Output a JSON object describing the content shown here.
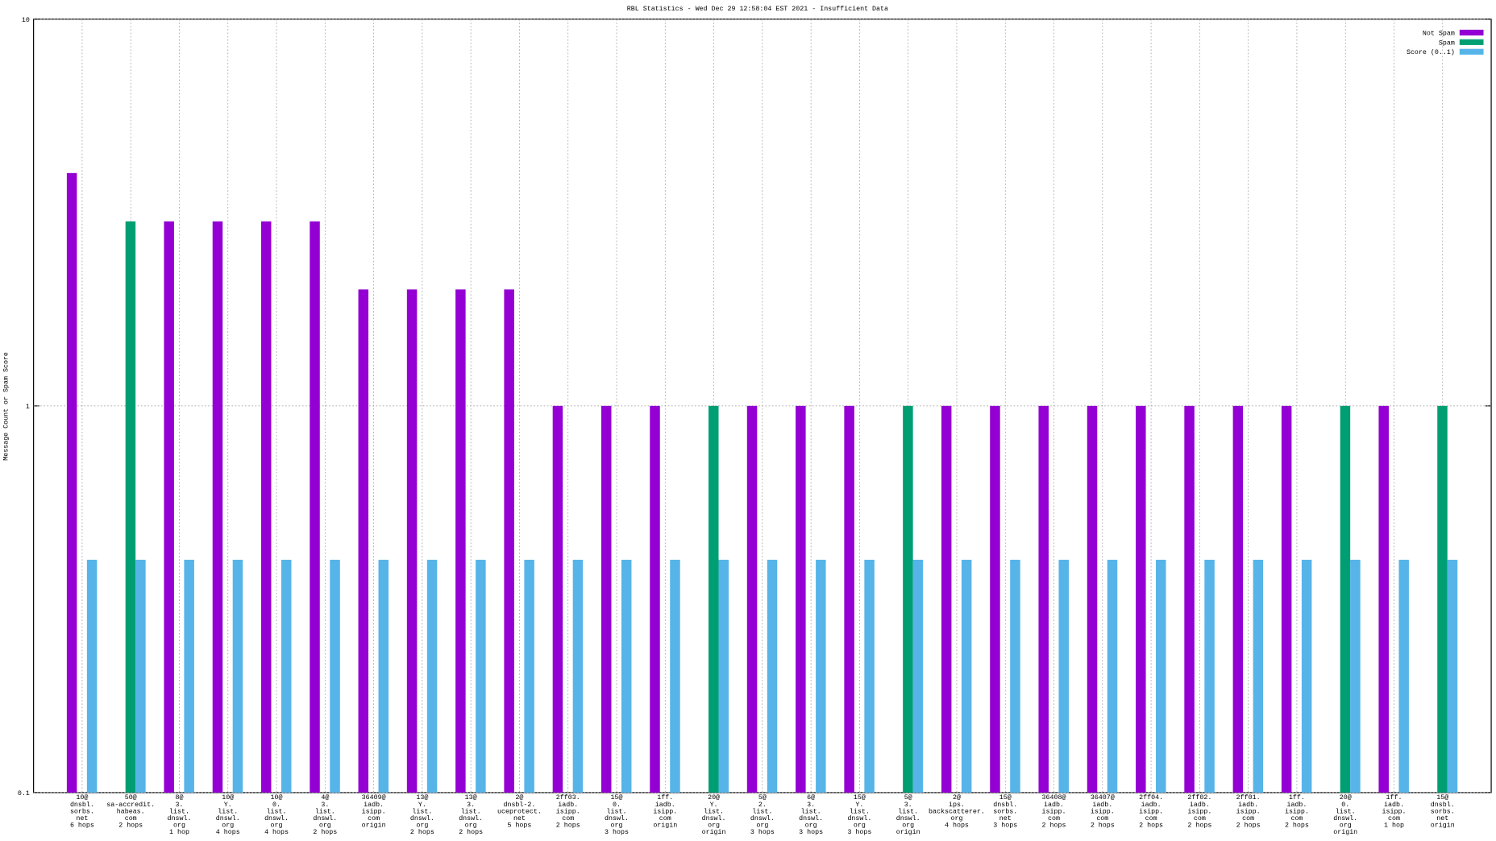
{
  "chart_data": {
    "type": "bar",
    "title": "RBL Statistics - Wed Dec 29 12:58:04 EST 2021 - Insufficient Data",
    "y_label": "Message Count or Spam Score",
    "log_y": true,
    "grid": true,
    "legend": "top-right",
    "categories": [
      [
        "10@",
        "dnsbl.",
        "sorbs.",
        "net",
        "6 hops"
      ],
      [
        "50@",
        "sa-accredit.",
        "habeas.",
        "com",
        "2 hops"
      ],
      [
        "8@",
        "3.",
        "list.",
        "dnswl.",
        "org",
        "1 hop"
      ],
      [
        "10@",
        "Y.",
        "list.",
        "dnswl.",
        "org",
        "4 hops"
      ],
      [
        "10@",
        "0.",
        "list.",
        "dnswl.",
        "org",
        "4 hops"
      ],
      [
        "4@",
        "3.",
        "list.",
        "dnswl.",
        "org",
        "2 hops"
      ],
      [
        "36409@",
        "iadb.",
        "isipp.",
        "com",
        "origin"
      ],
      [
        "13@",
        "Y.",
        "list.",
        "dnswl.",
        "org",
        "2 hops"
      ],
      [
        "13@",
        "3.",
        "list.",
        "dnswl.",
        "org",
        "2 hops"
      ],
      [
        "2@",
        "dnsbl-2.",
        "uceprotect.",
        "net",
        "5 hops"
      ],
      [
        "2ff03.",
        "iadb.",
        "isipp.",
        "com",
        "2 hops"
      ],
      [
        "15@",
        "0.",
        "list.",
        "dnswl.",
        "org",
        "3 hops"
      ],
      [
        "1ff.",
        "iadb.",
        "isipp.",
        "com",
        "origin"
      ],
      [
        "20@",
        "Y.",
        "list.",
        "dnswl.",
        "org",
        "origin"
      ],
      [
        "5@",
        "2.",
        "list.",
        "dnswl.",
        "org",
        "3 hops"
      ],
      [
        "6@",
        "3.",
        "list.",
        "dnswl.",
        "org",
        "3 hops"
      ],
      [
        "15@",
        "Y.",
        "list.",
        "dnswl.",
        "org",
        "3 hops"
      ],
      [
        "5@",
        "3.",
        "list.",
        "dnswl.",
        "org",
        "origin"
      ],
      [
        "2@",
        "ips.",
        "backscatterer.",
        "org",
        "4 hops"
      ],
      [
        "15@",
        "dnsbl.",
        "sorbs.",
        "net",
        "3 hops"
      ],
      [
        "36408@",
        "iadb.",
        "isipp.",
        "com",
        "2 hops"
      ],
      [
        "36407@",
        "iadb.",
        "isipp.",
        "com",
        "2 hops"
      ],
      [
        "2ff04.",
        "iadb.",
        "isipp.",
        "com",
        "2 hops"
      ],
      [
        "2ff02.",
        "iadb.",
        "isipp.",
        "com",
        "2 hops"
      ],
      [
        "2ff01.",
        "iadb.",
        "isipp.",
        "com",
        "2 hops"
      ],
      [
        "1ff.",
        "iadb.",
        "isipp.",
        "com",
        "2 hops"
      ],
      [
        "20@",
        "0.",
        "list.",
        "dnswl.",
        "org",
        "origin"
      ],
      [
        "1ff.",
        "iadb.",
        "isipp.",
        "com",
        "1 hop"
      ],
      [
        "15@",
        "dnsbl.",
        "sorbs.",
        "net",
        "origin"
      ]
    ],
    "series": [
      {
        "name": "Not Spam",
        "color": "#9400d3",
        "values": [
          4,
          null,
          3,
          3,
          3,
          3,
          2,
          2,
          2,
          2,
          1,
          1,
          1,
          null,
          1,
          1,
          1,
          null,
          1,
          1,
          1,
          1,
          1,
          1,
          1,
          1,
          null,
          1,
          null
        ]
      },
      {
        "name": "Spam",
        "color": "#009e73",
        "values": [
          null,
          3,
          null,
          null,
          null,
          null,
          null,
          null,
          null,
          null,
          null,
          null,
          null,
          1,
          null,
          null,
          null,
          1,
          null,
          null,
          null,
          null,
          null,
          null,
          null,
          null,
          1,
          null,
          1
        ]
      },
      {
        "name": "Score (0..1)",
        "color": "#56b4e9",
        "values": [
          0.4,
          0.4,
          0.4,
          0.4,
          0.4,
          0.4,
          0.4,
          0.4,
          0.4,
          0.4,
          0.4,
          0.4,
          0.4,
          0.4,
          0.4,
          0.4,
          0.4,
          0.4,
          0.4,
          0.4,
          0.4,
          0.4,
          0.4,
          0.4,
          0.4,
          0.4,
          0.4,
          0.4,
          0.4
        ]
      }
    ],
    "ylim": [
      0.1,
      10
    ],
    "yticks": [
      0.1,
      1,
      10
    ]
  }
}
